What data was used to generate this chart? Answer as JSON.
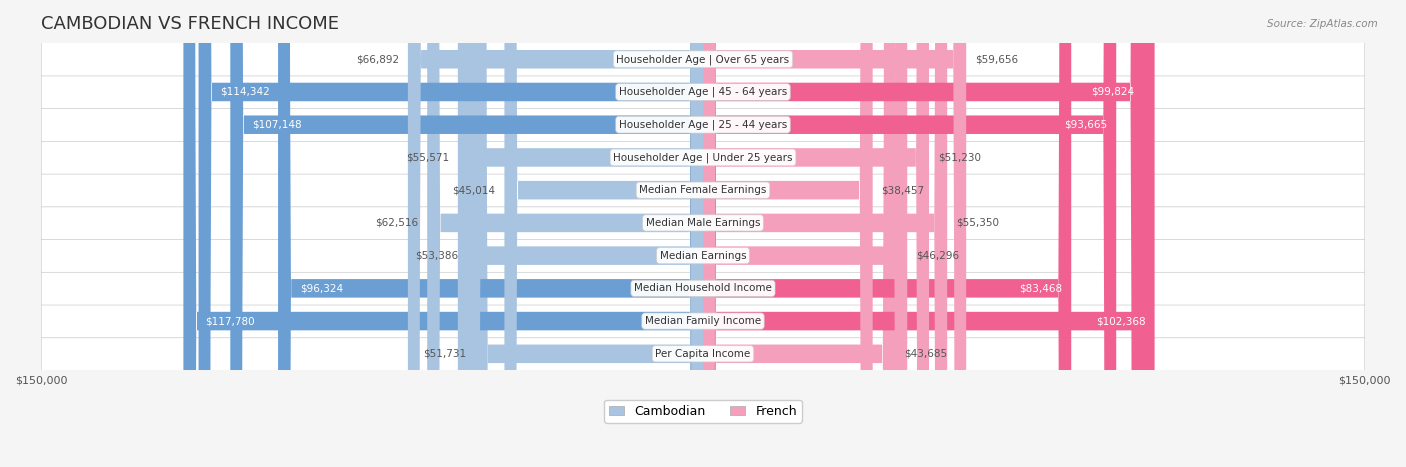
{
  "title": "CAMBODIAN VS FRENCH INCOME",
  "source": "Source: ZipAtlas.com",
  "categories": [
    "Per Capita Income",
    "Median Family Income",
    "Median Household Income",
    "Median Earnings",
    "Median Male Earnings",
    "Median Female Earnings",
    "Householder Age | Under 25 years",
    "Householder Age | 25 - 44 years",
    "Householder Age | 45 - 64 years",
    "Householder Age | Over 65 years"
  ],
  "cambodian_values": [
    51731,
    117780,
    96324,
    53386,
    62516,
    45014,
    55571,
    107148,
    114342,
    66892
  ],
  "french_values": [
    43685,
    102368,
    83468,
    46296,
    55350,
    38457,
    51230,
    93665,
    99824,
    59656
  ],
  "cambodian_labels": [
    "$51,731",
    "$117,780",
    "$96,324",
    "$53,386",
    "$62,516",
    "$45,014",
    "$55,571",
    "$107,148",
    "$114,342",
    "$66,892"
  ],
  "french_labels": [
    "$43,685",
    "$102,368",
    "$83,468",
    "$46,296",
    "$55,350",
    "$38,457",
    "$51,230",
    "$93,665",
    "$99,824",
    "$59,656"
  ],
  "max_value": 150000,
  "cambodian_color_light": "#a8c4e0",
  "cambodian_color_dark": "#6b9fd4",
  "french_color_light": "#f4a0bc",
  "french_color_dark": "#f06090",
  "background_color": "#f5f5f5",
  "row_bg_color": "#ffffff",
  "label_box_color": "#ffffff",
  "title_fontsize": 13,
  "label_fontsize": 7.5,
  "category_fontsize": 7.5,
  "legend_fontsize": 9,
  "axis_label_fontsize": 8
}
